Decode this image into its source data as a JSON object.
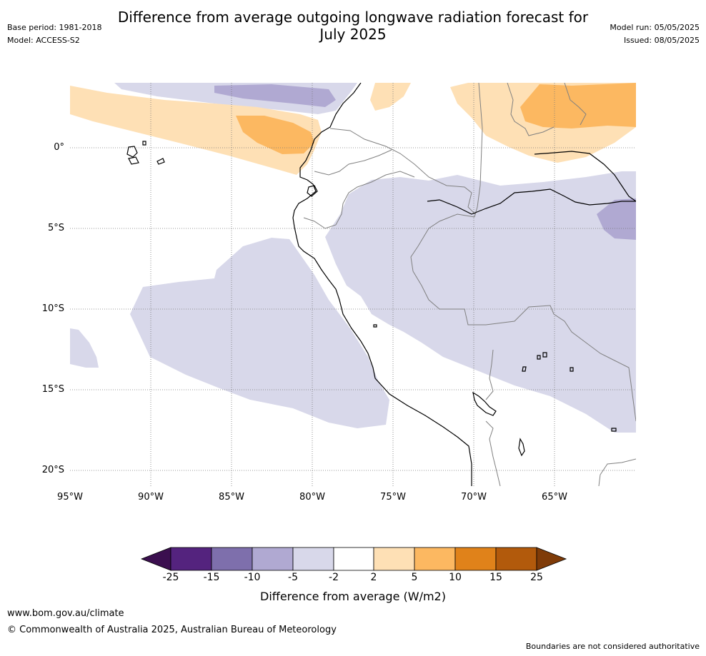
{
  "title": "Difference from average outgoing longwave radiation forecast for July 2025",
  "title_line1": "Difference from average outgoing longwave radiation forecast for",
  "title_line2": "July 2025",
  "meta_left": [
    "Base period: 1981-2018",
    "Model: ACCESS-S2"
  ],
  "meta_right": [
    "Model run: 05/05/2025",
    "Issued: 08/05/2025"
  ],
  "lat_labels": [
    "0°",
    "5°S",
    "10°S",
    "15°S",
    "20°S"
  ],
  "lon_labels": [
    "95°W",
    "90°W",
    "85°W",
    "80°W",
    "75°W",
    "70°W",
    "65°W"
  ],
  "colorbar": {
    "tick_labels": [
      "-25",
      "-15",
      "-10",
      "-5",
      "-2",
      "2",
      "5",
      "10",
      "15",
      "25"
    ],
    "colors": [
      "#3b0f4f",
      "#54237e",
      "#7e6fac",
      "#b0a9d2",
      "#d8d8ea",
      "#ffffff",
      "#fee0b5",
      "#fcb861",
      "#e0821a",
      "#b25a0c",
      "#7f3b08"
    ],
    "title": "Difference from average (W/m2)"
  },
  "footer": {
    "website": "www.bom.gov.au/climate",
    "copyright": "© Commonwealth of Australia 2025, Australian Bureau of Meteorology",
    "disclaimer": "Boundaries are not considered authoritative"
  }
}
